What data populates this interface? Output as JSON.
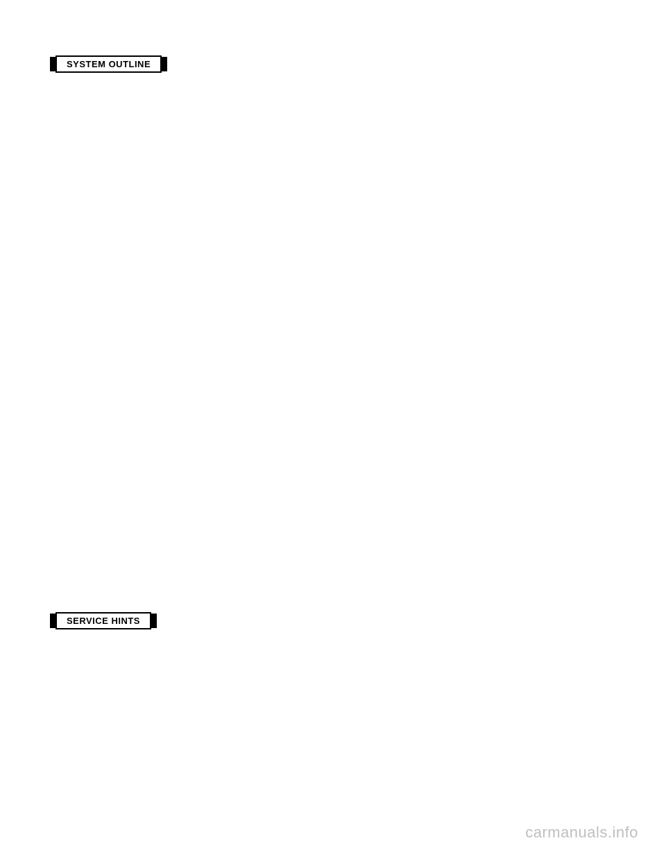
{
  "sections": {
    "system_outline": {
      "label": "SYSTEM OUTLINE"
    },
    "service_hints": {
      "label": "SERVICE HINTS"
    }
  },
  "watermark": {
    "text": "carmanuals.info"
  },
  "style": {
    "background_color": "#ffffff",
    "text_color": "#000000",
    "watermark_color": "#bfbfbf",
    "header_font_size": 13,
    "watermark_font_size": 22
  }
}
